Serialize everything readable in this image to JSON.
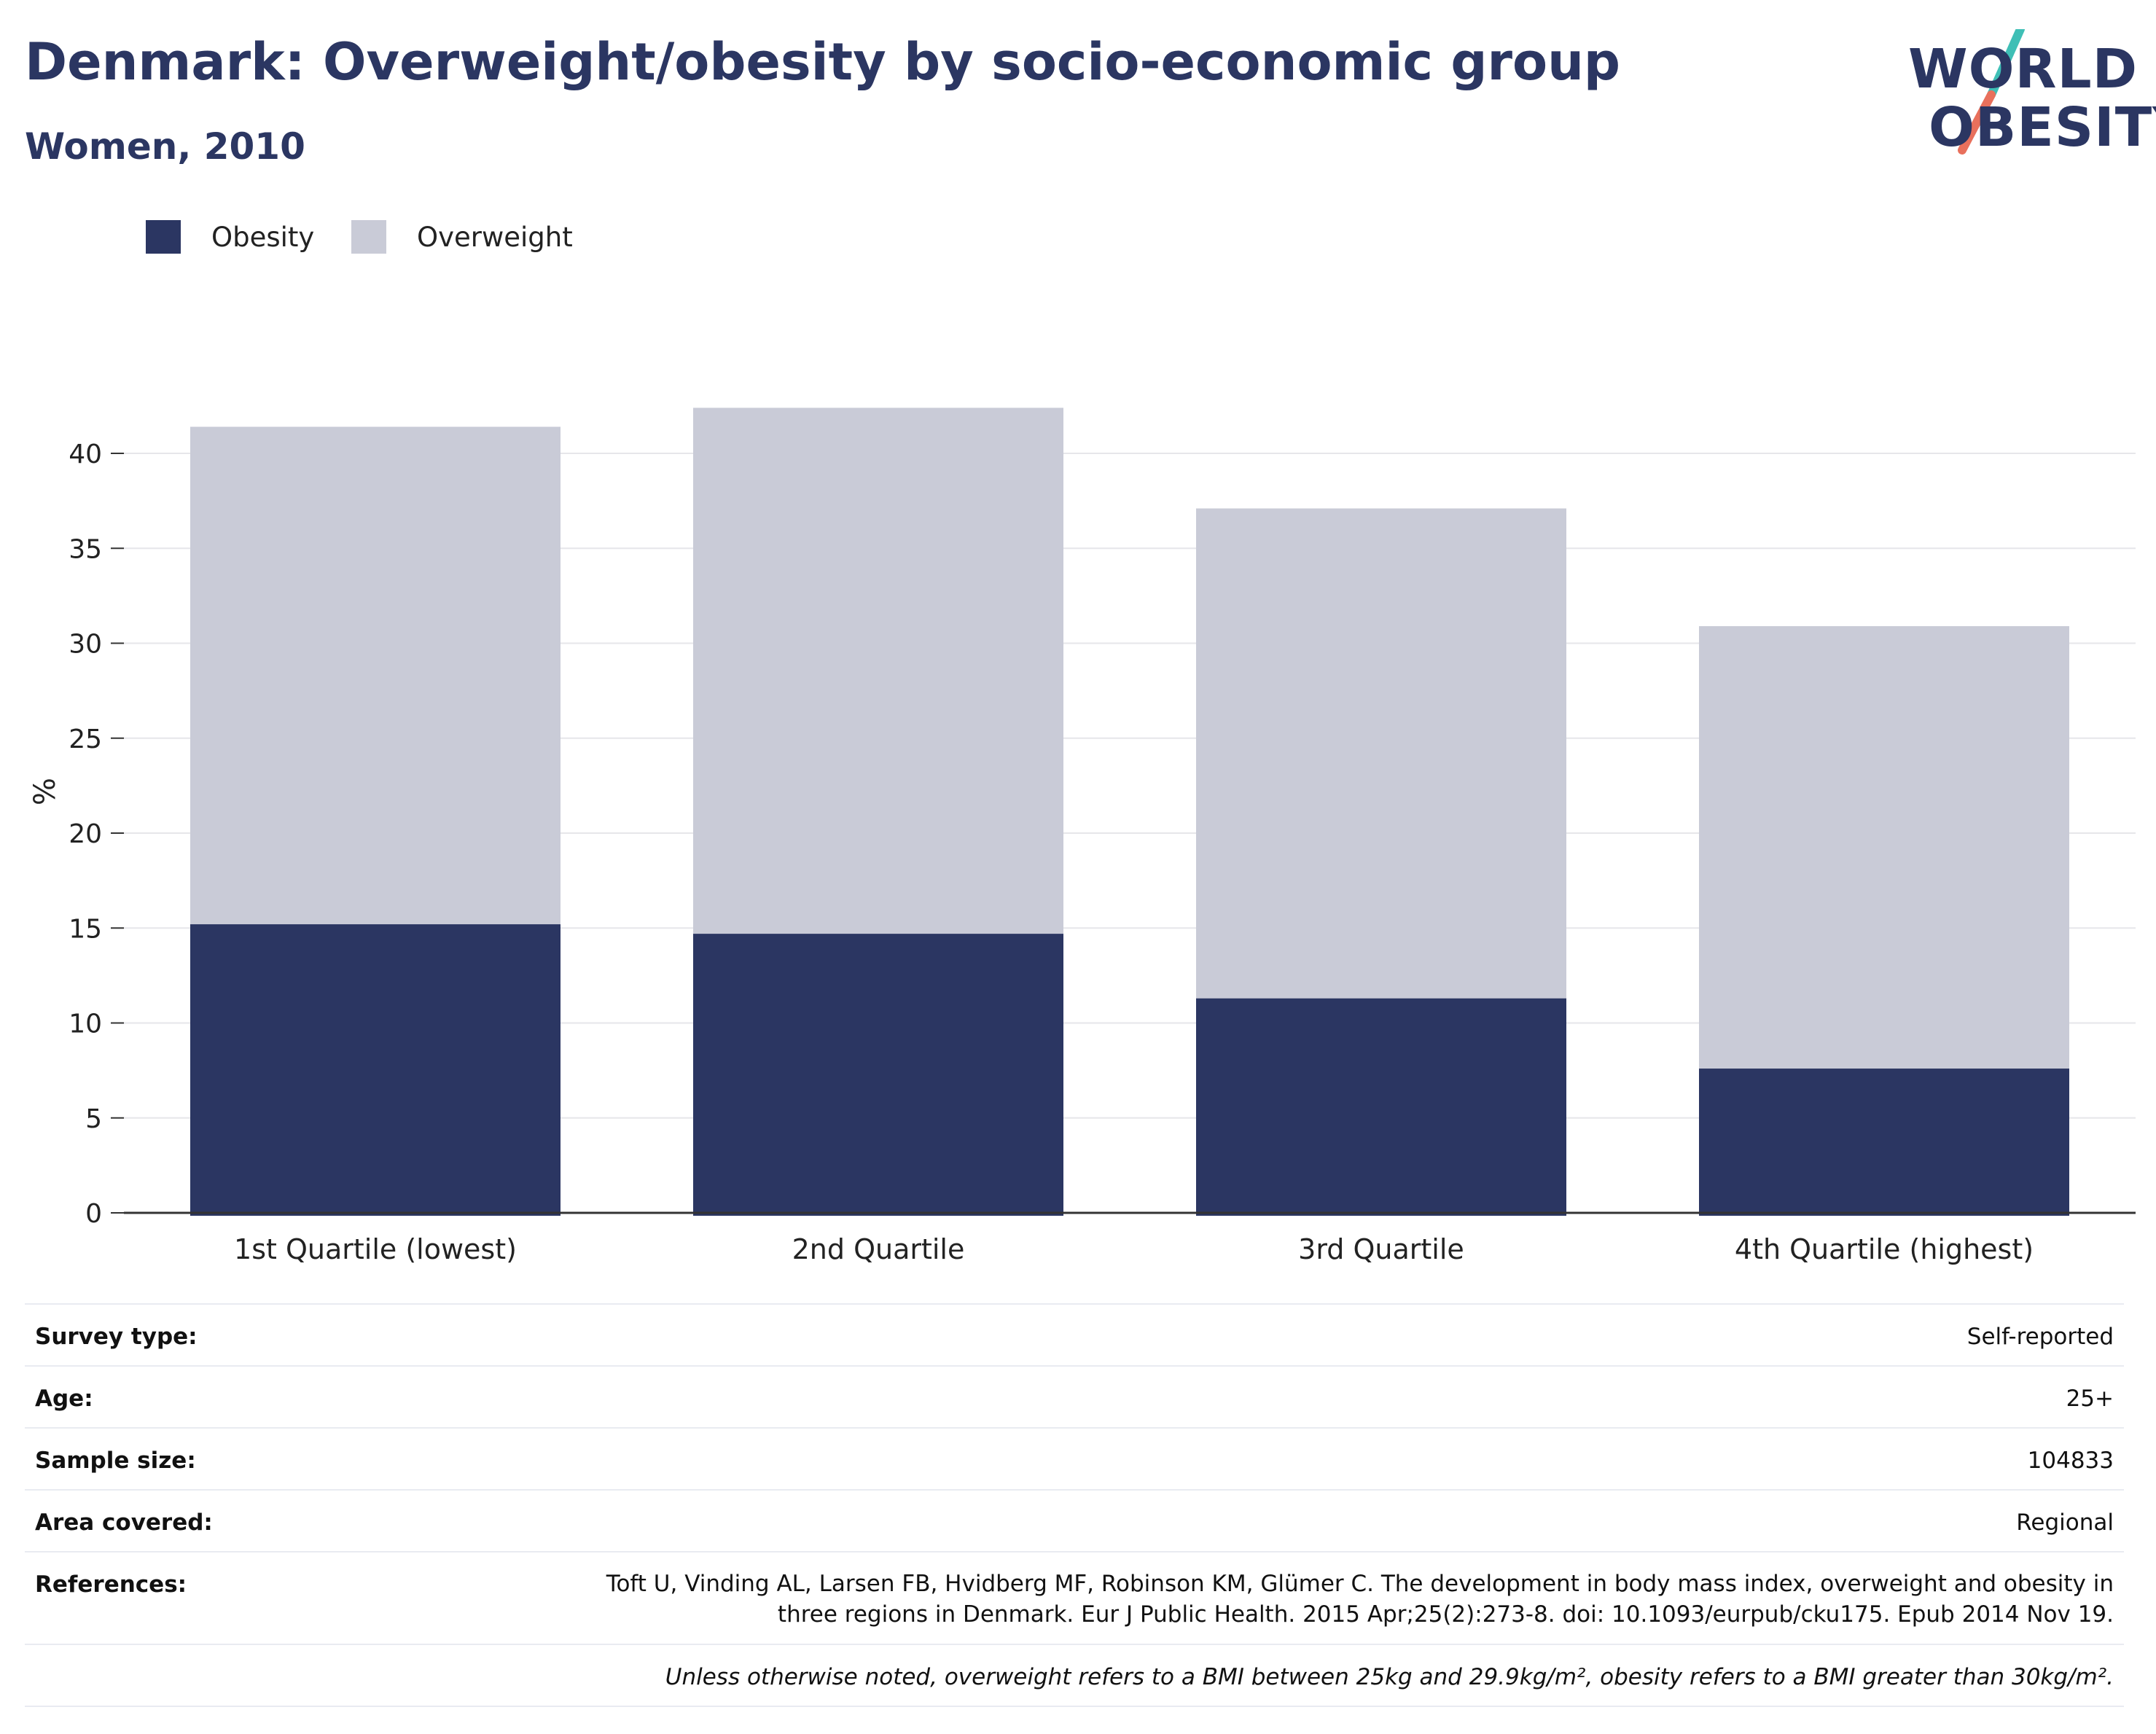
{
  "header": {
    "title": "Denmark: Overweight/obesity by socio-economic group",
    "subtitle": "Women, 2010"
  },
  "logo": {
    "line1": "WORLD",
    "line2": "OBESITY",
    "slash_color_top": "#3fbfb6",
    "slash_color_bottom": "#e8705c"
  },
  "colors": {
    "obesity": "#2b3662",
    "overweight": "#c9cbd7",
    "gridline": "#e6e6ea",
    "axis": "#333333"
  },
  "chart_data": {
    "type": "bar",
    "stacked": true,
    "categories": [
      "1st Quartile (lowest)",
      "2nd Quartile",
      "3rd Quartile",
      "4th Quartile (highest)"
    ],
    "series": [
      {
        "name": "Obesity",
        "values": [
          15.2,
          14.7,
          11.3,
          7.6
        ]
      },
      {
        "name": "Overweight",
        "values": [
          26.2,
          27.7,
          25.8,
          23.3
        ]
      }
    ],
    "xlabel": "",
    "ylabel": "%",
    "ylim": [
      0,
      43
    ],
    "yticks": [
      0,
      5,
      10,
      15,
      20,
      25,
      30,
      35,
      40
    ],
    "grid": true,
    "legend": "top-left"
  },
  "info": {
    "rows": [
      {
        "label": "Survey type:",
        "value": "Self-reported"
      },
      {
        "label": "Age:",
        "value": "25+"
      },
      {
        "label": "Sample size:",
        "value": "104833"
      },
      {
        "label": "Area covered:",
        "value": "Regional"
      },
      {
        "label": "References:",
        "value": "Toft U, Vinding AL, Larsen FB, Hvidberg MF, Robinson KM, Glümer C. The development in body mass index, overweight and obesity in three regions in Denmark. Eur J Public Health. 2015 Apr;25(2):273-8. doi: 10.1093/eurpub/cku175. Epub 2014 Nov 19."
      }
    ],
    "note": "Unless otherwise noted, overweight refers to a BMI between 25kg and 29.9kg/m², obesity refers to a BMI greater than 30kg/m²."
  }
}
